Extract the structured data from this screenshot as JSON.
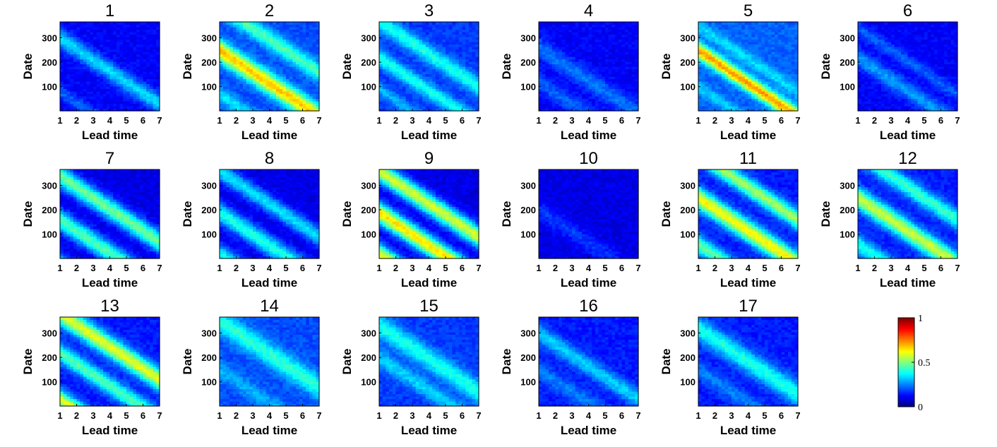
{
  "chart_data": {
    "type": "heatmap",
    "layout": {
      "rows": 3,
      "cols": 6
    },
    "xlabel": "Lead time",
    "ylabel": "Date",
    "x_ticks": [
      1,
      2,
      3,
      4,
      5,
      6,
      7
    ],
    "y_ticks": [
      100,
      200,
      300
    ],
    "xlim": [
      1,
      7
    ],
    "ylim": [
      1,
      365
    ],
    "colormap": "jet",
    "colorbar": {
      "min": 0,
      "max": 1,
      "ticks": [
        "1",
        "0.5",
        "0"
      ]
    },
    "panels": [
      {
        "title": "1",
        "base": 0.12,
        "bands": [
          {
            "c": 300,
            "amp": 0.22,
            "w": 40
          },
          {
            "c": 80,
            "amp": 0.1,
            "w": 30
          }
        ]
      },
      {
        "title": "2",
        "base": 0.2,
        "bands": [
          {
            "c": 250,
            "amp": 0.48,
            "w": 45
          },
          {
            "c": 430,
            "amp": 0.25,
            "w": 40
          },
          {
            "c": 70,
            "amp": 0.15,
            "w": 35
          }
        ]
      },
      {
        "title": "3",
        "base": 0.18,
        "bands": [
          {
            "c": 220,
            "amp": 0.22,
            "w": 35
          },
          {
            "c": 370,
            "amp": 0.22,
            "w": 40
          },
          {
            "c": 90,
            "amp": 0.12,
            "w": 30
          }
        ]
      },
      {
        "title": "4",
        "base": 0.12,
        "bands": [
          {
            "c": 260,
            "amp": 0.12,
            "w": 45
          },
          {
            "c": 120,
            "amp": 0.1,
            "w": 40
          }
        ]
      },
      {
        "title": "5",
        "base": 0.22,
        "bands": [
          {
            "c": 250,
            "amp": 0.5,
            "w": 35
          },
          {
            "c": 350,
            "amp": 0.12,
            "w": 30
          },
          {
            "c": 100,
            "amp": 0.1,
            "w": 30
          }
        ]
      },
      {
        "title": "6",
        "base": 0.12,
        "bands": [
          {
            "c": 220,
            "amp": 0.16,
            "w": 40
          },
          {
            "c": 340,
            "amp": 0.1,
            "w": 30
          }
        ]
      },
      {
        "title": "7",
        "base": 0.1,
        "bands": [
          {
            "c": 340,
            "amp": 0.38,
            "w": 45
          },
          {
            "c": 160,
            "amp": 0.35,
            "w": 45
          },
          {
            "c": -20,
            "amp": 0.32,
            "w": 45
          }
        ]
      },
      {
        "title": "8",
        "base": 0.1,
        "bands": [
          {
            "c": 360,
            "amp": 0.25,
            "w": 40
          },
          {
            "c": 190,
            "amp": 0.3,
            "w": 45
          },
          {
            "c": 20,
            "amp": 0.28,
            "w": 45
          }
        ]
      },
      {
        "title": "9",
        "base": 0.1,
        "bands": [
          {
            "c": 360,
            "amp": 0.48,
            "w": 45
          },
          {
            "c": 190,
            "amp": 0.55,
            "w": 45
          },
          {
            "c": 20,
            "amp": 0.5,
            "w": 45
          }
        ]
      },
      {
        "title": "10",
        "base": 0.1,
        "bands": [
          {
            "c": 200,
            "amp": 0.08,
            "w": 40
          }
        ]
      },
      {
        "title": "11",
        "base": 0.15,
        "bands": [
          {
            "c": 250,
            "amp": 0.48,
            "w": 45
          },
          {
            "c": 430,
            "amp": 0.38,
            "w": 40
          },
          {
            "c": 60,
            "amp": 0.32,
            "w": 40
          }
        ]
      },
      {
        "title": "12",
        "base": 0.15,
        "bands": [
          {
            "c": 250,
            "amp": 0.42,
            "w": 45
          },
          {
            "c": 430,
            "amp": 0.28,
            "w": 40
          },
          {
            "c": 60,
            "amp": 0.25,
            "w": 40
          }
        ]
      },
      {
        "title": "13",
        "base": 0.15,
        "bands": [
          {
            "c": 380,
            "amp": 0.45,
            "w": 45
          },
          {
            "c": 220,
            "amp": 0.3,
            "w": 40
          },
          {
            "c": 30,
            "amp": 0.45,
            "w": 40
          }
        ]
      },
      {
        "title": "14",
        "base": 0.2,
        "bands": [
          {
            "c": 350,
            "amp": 0.22,
            "w": 50
          },
          {
            "c": 150,
            "amp": 0.1,
            "w": 40
          }
        ]
      },
      {
        "title": "15",
        "base": 0.18,
        "bands": [
          {
            "c": 330,
            "amp": 0.22,
            "w": 50
          },
          {
            "c": 200,
            "amp": 0.15,
            "w": 40
          }
        ]
      },
      {
        "title": "16",
        "base": 0.15,
        "bands": [
          {
            "c": 300,
            "amp": 0.18,
            "w": 40
          },
          {
            "c": 150,
            "amp": 0.1,
            "w": 40
          }
        ]
      },
      {
        "title": "17",
        "base": 0.15,
        "bands": [
          {
            "c": 320,
            "amp": 0.25,
            "w": 50
          },
          {
            "c": 150,
            "amp": 0.1,
            "w": 40
          }
        ]
      }
    ]
  }
}
